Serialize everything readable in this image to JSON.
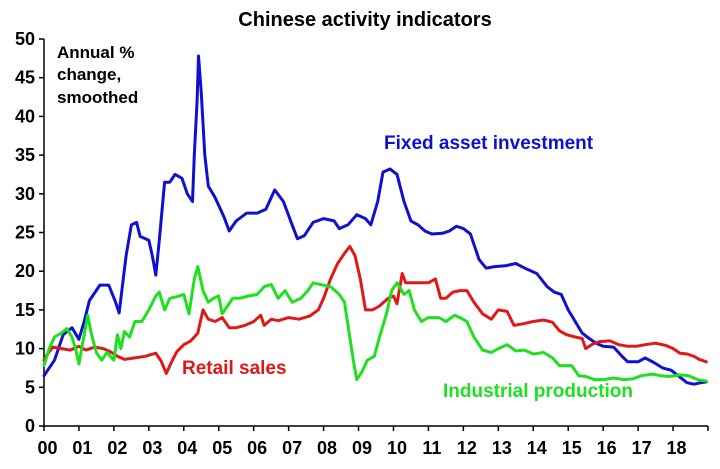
{
  "chart_data": {
    "type": "line",
    "title": "Chinese activity indicators",
    "annotation": [
      "Annual %",
      "change,",
      "smoothed"
    ],
    "xlabel": "",
    "ylabel": "",
    "x_tick_labels": [
      "00",
      "01",
      "02",
      "03",
      "04",
      "05",
      "06",
      "07",
      "08",
      "09",
      "10",
      "11",
      "12",
      "13",
      "14",
      "15",
      "16",
      "17",
      "18"
    ],
    "y_ticks": [
      0,
      5,
      10,
      15,
      20,
      25,
      30,
      35,
      40,
      45,
      50
    ],
    "xlim": [
      2000.0,
      2019.0
    ],
    "ylim": [
      0,
      50
    ],
    "grid": false,
    "legend": "inline labels",
    "series": [
      {
        "name": "Fixed asset investment",
        "color": "#1010d0",
        "points": [
          [
            2000.0,
            6.5
          ],
          [
            2000.3,
            8.5
          ],
          [
            2000.55,
            11.8
          ],
          [
            2000.8,
            12.7
          ],
          [
            2001.0,
            11.2
          ],
          [
            2001.15,
            13.5
          ],
          [
            2001.3,
            16.2
          ],
          [
            2001.6,
            18.2
          ],
          [
            2001.85,
            18.2
          ],
          [
            2002.05,
            16.0
          ],
          [
            2002.15,
            14.6
          ],
          [
            2002.35,
            22.0
          ],
          [
            2002.5,
            26.0
          ],
          [
            2002.65,
            26.3
          ],
          [
            2002.75,
            24.5
          ],
          [
            2003.0,
            24.0
          ],
          [
            2003.1,
            22.0
          ],
          [
            2003.2,
            19.5
          ],
          [
            2003.3,
            24.0
          ],
          [
            2003.45,
            31.5
          ],
          [
            2003.6,
            31.5
          ],
          [
            2003.75,
            32.5
          ],
          [
            2003.95,
            32.0
          ],
          [
            2004.1,
            30.0
          ],
          [
            2004.25,
            29.0
          ],
          [
            2004.3,
            35.0
          ],
          [
            2004.38,
            42.0
          ],
          [
            2004.42,
            47.8
          ],
          [
            2004.5,
            43.0
          ],
          [
            2004.6,
            35.0
          ],
          [
            2004.7,
            31.0
          ],
          [
            2004.9,
            29.5
          ],
          [
            2005.15,
            27.0
          ],
          [
            2005.3,
            25.2
          ],
          [
            2005.5,
            26.5
          ],
          [
            2005.8,
            27.5
          ],
          [
            2006.1,
            27.5
          ],
          [
            2006.35,
            28.0
          ],
          [
            2006.6,
            30.5
          ],
          [
            2006.85,
            29.0
          ],
          [
            2007.1,
            26.0
          ],
          [
            2007.25,
            24.2
          ],
          [
            2007.45,
            24.6
          ],
          [
            2007.7,
            26.3
          ],
          [
            2008.0,
            26.8
          ],
          [
            2008.3,
            26.5
          ],
          [
            2008.45,
            25.5
          ],
          [
            2008.7,
            26.0
          ],
          [
            2008.95,
            27.3
          ],
          [
            2009.2,
            26.8
          ],
          [
            2009.35,
            26.0
          ],
          [
            2009.55,
            29.0
          ],
          [
            2009.7,
            32.8
          ],
          [
            2009.9,
            33.2
          ],
          [
            2010.1,
            32.5
          ],
          [
            2010.3,
            29.0
          ],
          [
            2010.5,
            26.5
          ],
          [
            2010.7,
            26.0
          ],
          [
            2010.9,
            25.2
          ],
          [
            2011.1,
            24.8
          ],
          [
            2011.4,
            24.9
          ],
          [
            2011.6,
            25.2
          ],
          [
            2011.8,
            25.8
          ],
          [
            2012.0,
            25.5
          ],
          [
            2012.2,
            24.8
          ],
          [
            2012.45,
            21.5
          ],
          [
            2012.65,
            20.4
          ],
          [
            2012.9,
            20.6
          ],
          [
            2013.2,
            20.7
          ],
          [
            2013.5,
            21.0
          ],
          [
            2013.8,
            20.3
          ],
          [
            2014.1,
            19.7
          ],
          [
            2014.4,
            18.0
          ],
          [
            2014.6,
            17.3
          ],
          [
            2014.8,
            17.0
          ],
          [
            2015.0,
            15.0
          ],
          [
            2015.2,
            13.5
          ],
          [
            2015.4,
            12.0
          ],
          [
            2015.6,
            11.3
          ],
          [
            2015.8,
            10.7
          ],
          [
            2016.0,
            10.3
          ],
          [
            2016.3,
            10.2
          ],
          [
            2016.5,
            9.2
          ],
          [
            2016.7,
            8.3
          ],
          [
            2017.0,
            8.3
          ],
          [
            2017.2,
            8.8
          ],
          [
            2017.45,
            8.2
          ],
          [
            2017.7,
            7.5
          ],
          [
            2017.95,
            7.2
          ],
          [
            2018.2,
            6.3
          ],
          [
            2018.4,
            5.6
          ],
          [
            2018.6,
            5.4
          ],
          [
            2018.8,
            5.6
          ],
          [
            2018.95,
            5.7
          ]
        ]
      },
      {
        "name": "Retail sales",
        "color": "#e01818",
        "points": [
          [
            2000.0,
            8.5
          ],
          [
            2000.1,
            9.3
          ],
          [
            2000.25,
            10.2
          ],
          [
            2000.5,
            10.0
          ],
          [
            2000.75,
            9.8
          ],
          [
            2001.0,
            10.3
          ],
          [
            2001.2,
            9.8
          ],
          [
            2001.45,
            10.2
          ],
          [
            2001.7,
            10.0
          ],
          [
            2001.9,
            9.6
          ],
          [
            2002.1,
            9.0
          ],
          [
            2002.3,
            8.6
          ],
          [
            2002.6,
            8.8
          ],
          [
            2002.9,
            9.0
          ],
          [
            2003.2,
            9.4
          ],
          [
            2003.35,
            8.4
          ],
          [
            2003.5,
            6.8
          ],
          [
            2003.65,
            8.3
          ],
          [
            2003.8,
            9.6
          ],
          [
            2004.0,
            10.5
          ],
          [
            2004.2,
            11.0
          ],
          [
            2004.4,
            12.0
          ],
          [
            2004.55,
            15.0
          ],
          [
            2004.7,
            13.8
          ],
          [
            2004.9,
            13.5
          ],
          [
            2005.1,
            14.0
          ],
          [
            2005.3,
            12.7
          ],
          [
            2005.5,
            12.7
          ],
          [
            2005.75,
            13.0
          ],
          [
            2006.0,
            13.5
          ],
          [
            2006.2,
            14.3
          ],
          [
            2006.3,
            13.0
          ],
          [
            2006.5,
            13.8
          ],
          [
            2006.7,
            13.6
          ],
          [
            2007.0,
            14.0
          ],
          [
            2007.3,
            13.8
          ],
          [
            2007.6,
            14.2
          ],
          [
            2007.85,
            15.0
          ],
          [
            2008.0,
            16.5
          ],
          [
            2008.2,
            19.0
          ],
          [
            2008.4,
            21.0
          ],
          [
            2008.6,
            22.3
          ],
          [
            2008.75,
            23.2
          ],
          [
            2008.9,
            22.0
          ],
          [
            2009.05,
            19.0
          ],
          [
            2009.2,
            15.0
          ],
          [
            2009.4,
            15.0
          ],
          [
            2009.6,
            15.5
          ],
          [
            2009.85,
            16.5
          ],
          [
            2010.0,
            16.8
          ],
          [
            2010.1,
            15.8
          ],
          [
            2010.25,
            19.7
          ],
          [
            2010.35,
            18.5
          ],
          [
            2010.5,
            18.5
          ],
          [
            2010.75,
            18.5
          ],
          [
            2011.0,
            18.5
          ],
          [
            2011.2,
            19.0
          ],
          [
            2011.35,
            16.5
          ],
          [
            2011.5,
            16.5
          ],
          [
            2011.7,
            17.3
          ],
          [
            2011.9,
            17.5
          ],
          [
            2012.1,
            17.5
          ],
          [
            2012.3,
            16.0
          ],
          [
            2012.55,
            14.5
          ],
          [
            2012.8,
            13.8
          ],
          [
            2013.0,
            15.0
          ],
          [
            2013.25,
            14.8
          ],
          [
            2013.45,
            13.0
          ],
          [
            2013.7,
            13.2
          ],
          [
            2014.0,
            13.5
          ],
          [
            2014.3,
            13.7
          ],
          [
            2014.55,
            13.4
          ],
          [
            2014.75,
            12.3
          ],
          [
            2014.95,
            11.8
          ],
          [
            2015.2,
            11.5
          ],
          [
            2015.4,
            11.3
          ],
          [
            2015.5,
            10.0
          ],
          [
            2015.7,
            10.6
          ],
          [
            2015.9,
            10.9
          ],
          [
            2016.2,
            11.0
          ],
          [
            2016.45,
            10.5
          ],
          [
            2016.7,
            10.3
          ],
          [
            2016.95,
            10.3
          ],
          [
            2017.2,
            10.5
          ],
          [
            2017.5,
            10.7
          ],
          [
            2017.8,
            10.4
          ],
          [
            2018.0,
            10.0
          ],
          [
            2018.2,
            9.4
          ],
          [
            2018.4,
            9.3
          ],
          [
            2018.6,
            9.0
          ],
          [
            2018.75,
            8.6
          ],
          [
            2018.95,
            8.3
          ]
        ]
      },
      {
        "name": "Industrial production",
        "color": "#1ee01e",
        "points": [
          [
            2000.0,
            7.8
          ],
          [
            2000.15,
            10.0
          ],
          [
            2000.3,
            11.5
          ],
          [
            2000.5,
            12.0
          ],
          [
            2000.65,
            12.6
          ],
          [
            2000.8,
            11.5
          ],
          [
            2000.9,
            10.0
          ],
          [
            2001.0,
            8.0
          ],
          [
            2001.1,
            10.5
          ],
          [
            2001.25,
            14.3
          ],
          [
            2001.35,
            12.0
          ],
          [
            2001.5,
            9.5
          ],
          [
            2001.65,
            8.5
          ],
          [
            2001.8,
            9.5
          ],
          [
            2002.0,
            8.5
          ],
          [
            2002.1,
            11.8
          ],
          [
            2002.2,
            10.0
          ],
          [
            2002.3,
            12.2
          ],
          [
            2002.45,
            11.5
          ],
          [
            2002.6,
            13.5
          ],
          [
            2002.8,
            13.5
          ],
          [
            2003.0,
            15.0
          ],
          [
            2003.2,
            16.8
          ],
          [
            2003.3,
            17.3
          ],
          [
            2003.45,
            15.0
          ],
          [
            2003.6,
            16.5
          ],
          [
            2003.8,
            16.7
          ],
          [
            2004.0,
            17.0
          ],
          [
            2004.15,
            14.5
          ],
          [
            2004.3,
            19.0
          ],
          [
            2004.4,
            20.6
          ],
          [
            2004.55,
            17.5
          ],
          [
            2004.7,
            16.0
          ],
          [
            2004.85,
            16.5
          ],
          [
            2005.0,
            16.8
          ],
          [
            2005.1,
            14.5
          ],
          [
            2005.25,
            15.5
          ],
          [
            2005.4,
            16.5
          ],
          [
            2005.6,
            16.5
          ],
          [
            2005.85,
            16.8
          ],
          [
            2006.1,
            17.0
          ],
          [
            2006.3,
            18.0
          ],
          [
            2006.5,
            18.3
          ],
          [
            2006.7,
            16.5
          ],
          [
            2006.9,
            17.5
          ],
          [
            2007.1,
            16.0
          ],
          [
            2007.35,
            16.5
          ],
          [
            2007.55,
            17.5
          ],
          [
            2007.7,
            18.5
          ],
          [
            2007.9,
            18.3
          ],
          [
            2008.2,
            18.0
          ],
          [
            2008.45,
            17.0
          ],
          [
            2008.6,
            16.0
          ],
          [
            2008.7,
            13.0
          ],
          [
            2008.85,
            8.5
          ],
          [
            2008.95,
            6.0
          ],
          [
            2009.1,
            7.0
          ],
          [
            2009.25,
            8.5
          ],
          [
            2009.45,
            9.0
          ],
          [
            2009.6,
            11.5
          ],
          [
            2009.8,
            14.5
          ],
          [
            2009.95,
            17.5
          ],
          [
            2010.1,
            18.5
          ],
          [
            2010.3,
            17.0
          ],
          [
            2010.45,
            17.5
          ],
          [
            2010.6,
            15.0
          ],
          [
            2010.8,
            13.5
          ],
          [
            2011.0,
            14.0
          ],
          [
            2011.3,
            14.0
          ],
          [
            2011.5,
            13.5
          ],
          [
            2011.75,
            14.3
          ],
          [
            2011.9,
            14.0
          ],
          [
            2012.1,
            13.5
          ],
          [
            2012.3,
            11.5
          ],
          [
            2012.55,
            9.8
          ],
          [
            2012.8,
            9.5
          ],
          [
            2013.0,
            10.0
          ],
          [
            2013.25,
            10.5
          ],
          [
            2013.5,
            9.7
          ],
          [
            2013.75,
            9.8
          ],
          [
            2014.0,
            9.3
          ],
          [
            2014.3,
            9.5
          ],
          [
            2014.55,
            8.8
          ],
          [
            2014.75,
            7.8
          ],
          [
            2014.9,
            7.8
          ],
          [
            2015.1,
            7.8
          ],
          [
            2015.3,
            6.5
          ],
          [
            2015.5,
            6.4
          ],
          [
            2015.75,
            6.0
          ],
          [
            2016.0,
            6.0
          ],
          [
            2016.3,
            6.2
          ],
          [
            2016.6,
            6.0
          ],
          [
            2016.85,
            6.1
          ],
          [
            2017.1,
            6.5
          ],
          [
            2017.4,
            6.7
          ],
          [
            2017.65,
            6.5
          ],
          [
            2017.9,
            6.4
          ],
          [
            2018.2,
            6.6
          ],
          [
            2018.45,
            6.5
          ],
          [
            2018.7,
            6.0
          ],
          [
            2018.95,
            5.8
          ]
        ]
      }
    ]
  }
}
